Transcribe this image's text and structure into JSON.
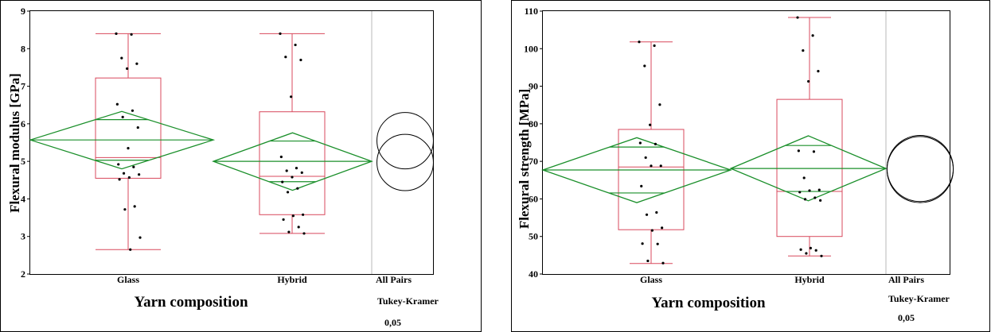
{
  "chart_data": [
    {
      "type": "box",
      "xlabel": "Yarn composition",
      "ylabel": "Flexural modulus [GPa]",
      "ylim": [
        2,
        9
      ],
      "yticks": [
        "2",
        "3",
        "4",
        "5",
        "6",
        "7",
        "8",
        "9"
      ],
      "categories": [
        "Glass",
        "Hybrid"
      ],
      "comparison_labels": [
        "All Pairs",
        "Tukey-Kramer",
        "0,05"
      ],
      "boxes": [
        {
          "name": "Glass",
          "min": 2.65,
          "q1": 4.55,
          "median": 5.1,
          "q3": 7.22,
          "max": 8.4
        },
        {
          "name": "Hybrid",
          "min": 3.08,
          "q1": 3.58,
          "median": 4.6,
          "q3": 6.32,
          "max": 8.4
        }
      ],
      "means_diamonds": [
        {
          "name": "Glass",
          "mean": 5.57,
          "lower": 4.8,
          "upper": 6.33
        },
        {
          "name": "Hybrid",
          "mean": 5.0,
          "lower": 4.23,
          "upper": 5.76
        }
      ],
      "comparison_circles": [
        {
          "name": "Glass",
          "center": 5.55,
          "radius": 0.75
        },
        {
          "name": "Hybrid",
          "center": 4.97,
          "radius": 0.75
        }
      ],
      "points": [
        {
          "group": "Glass",
          "values": [
            8.4,
            8.38,
            7.75,
            7.6,
            7.47,
            6.52,
            6.35,
            6.18,
            5.9,
            5.35,
            4.92,
            4.85,
            4.68,
            4.65,
            4.57,
            4.52,
            3.8,
            3.72,
            2.97,
            2.65
          ]
        },
        {
          "group": "Hybrid",
          "values": [
            8.4,
            8.1,
            7.78,
            7.7,
            6.72,
            5.12,
            4.82,
            4.75,
            4.7,
            4.58,
            4.45,
            4.28,
            4.18,
            3.58,
            3.55,
            3.45,
            3.25,
            3.12,
            3.08
          ]
        }
      ],
      "colors": {
        "box": "#d8485c",
        "diamond": "#1a8f2a",
        "axis": "#000000",
        "divider": "#b8b8b8",
        "point": "#000000",
        "circle": "#000000"
      }
    },
    {
      "type": "box",
      "xlabel": "Yarn composition",
      "ylabel": "Flexural strength [MPa]",
      "ylim": [
        40,
        110
      ],
      "yticks": [
        "40",
        "50",
        "60",
        "70",
        "80",
        "90",
        "100",
        "110"
      ],
      "categories": [
        "Glass",
        "Hybrid"
      ],
      "comparison_labels": [
        "All Pairs",
        "Tukey-Kramer",
        "0,05"
      ],
      "boxes": [
        {
          "name": "Glass",
          "min": 42.8,
          "q1": 51.8,
          "median": 68.5,
          "q3": 78.5,
          "max": 101.8
        },
        {
          "name": "Hybrid",
          "min": 44.8,
          "q1": 50.0,
          "median": 62.0,
          "q3": 86.5,
          "max": 108.3
        }
      ],
      "means_diamonds": [
        {
          "name": "Glass",
          "mean": 67.7,
          "lower": 59.0,
          "upper": 76.3
        },
        {
          "name": "Hybrid",
          "mean": 68.1,
          "lower": 59.5,
          "upper": 76.8
        }
      ],
      "comparison_circles": [
        {
          "name": "Glass",
          "center": 67.8,
          "radius": 8.8
        },
        {
          "name": "Hybrid",
          "center": 68.1,
          "radius": 8.8
        }
      ],
      "points": [
        {
          "group": "Glass",
          "values": [
            101.8,
            100.8,
            95.4,
            85.1,
            79.7,
            74.9,
            74.6,
            71.0,
            68.8,
            68.8,
            63.4,
            56.4,
            55.8,
            52.3,
            51.6,
            48.1,
            48.0,
            43.5,
            42.9
          ]
        },
        {
          "group": "Hybrid",
          "values": [
            108.3,
            103.5,
            99.5,
            94.0,
            91.3,
            72.8,
            72.6,
            65.6,
            62.4,
            62.2,
            61.8,
            60.3,
            59.9,
            59.6,
            46.9,
            46.5,
            46.3,
            45.5,
            44.8
          ]
        }
      ],
      "colors": {
        "box": "#d8485c",
        "diamond": "#1a8f2a",
        "axis": "#000000",
        "divider": "#b8b8b8",
        "point": "#000000",
        "circle": "#000000"
      }
    }
  ]
}
